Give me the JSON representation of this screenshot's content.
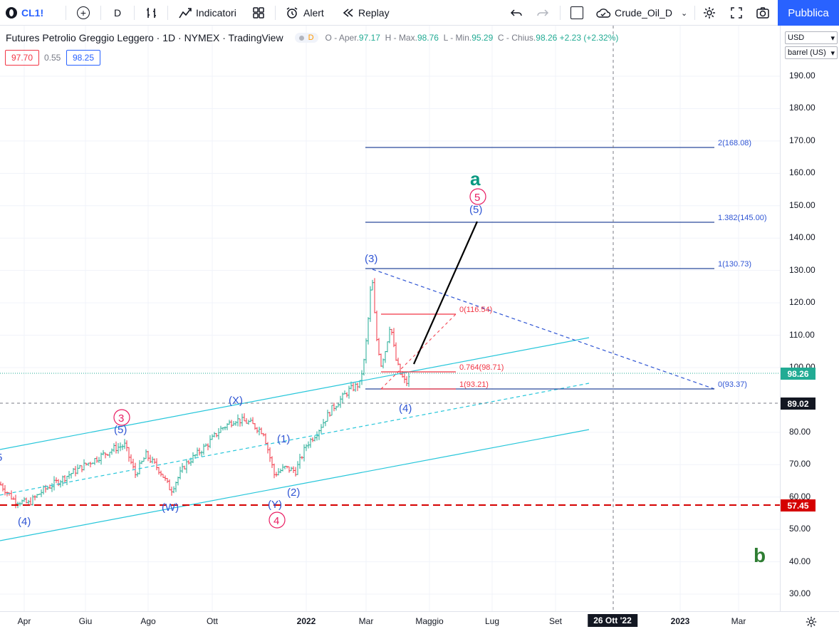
{
  "toolbar": {
    "symbol": "CL1!",
    "interval": "D",
    "indicators": "Indicatori",
    "alert": "Alert",
    "replay": "Replay",
    "layout_name": "Crude_Oil_D",
    "publish": "Pubblica"
  },
  "legend": {
    "title": "Futures Petrolio Greggio Leggero · 1D · NYMEX · TradingView",
    "badge": "D",
    "open_label": "O - Aper.",
    "open": "97.17",
    "high_label": "H - Max.",
    "high": "98.76",
    "low_label": "L - Min.",
    "low": "95.29",
    "close_label": "C - Chius.",
    "close": "98.26",
    "change": "+2.23 (+2.32%)"
  },
  "quote": {
    "bid": "97.70",
    "spread": "0.55",
    "ask": "98.25"
  },
  "scale": {
    "currency": "USD",
    "unit": "barrel (US)"
  },
  "price_axis": {
    "ticks": [
      "190.00",
      "180.00",
      "170.00",
      "160.00",
      "150.00",
      "140.00",
      "130.00",
      "120.00",
      "110.00",
      "100.00",
      "80.00",
      "70.00",
      "60.00",
      "50.00",
      "40.00",
      "30.00"
    ],
    "last_price": "98.26",
    "crosshair_price": "89.02",
    "support_price": "57.45"
  },
  "time_axis": {
    "ticks": [
      "Apr",
      "Giu",
      "Ago",
      "Ott",
      "2022",
      "Mar",
      "Maggio",
      "Lug",
      "Set",
      "2023",
      "Mar"
    ],
    "crosshair_date": "26 Ott '22"
  },
  "fib_levels": [
    "2(168.08)",
    "1.382(145.00)",
    "1(130.73)",
    "0(93.37)"
  ],
  "fib_inner": [
    "0(116.54)",
    "0.764(98.71)",
    "1(93.21)"
  ],
  "wave_labels": {
    "w3": "(3)",
    "w4_main": "(4)",
    "w5_main": "(5)",
    "c3": "3",
    "c5": "5",
    "c4": "4",
    "X": "(X)",
    "W": "(W)",
    "Y": "(Y)",
    "w1": "(1)",
    "w2": "(2)",
    "p5": "(5)",
    "p4": "(4)",
    "edge": "5",
    "a": "a",
    "b": "b"
  },
  "colors": {
    "accent": "#2962ff",
    "up": "#22ab94",
    "down": "#f23645",
    "wave_blue": "#2f55d4",
    "wave_red": "#e91e63",
    "wave_green": "#089981",
    "channel": "#26c6da"
  }
}
